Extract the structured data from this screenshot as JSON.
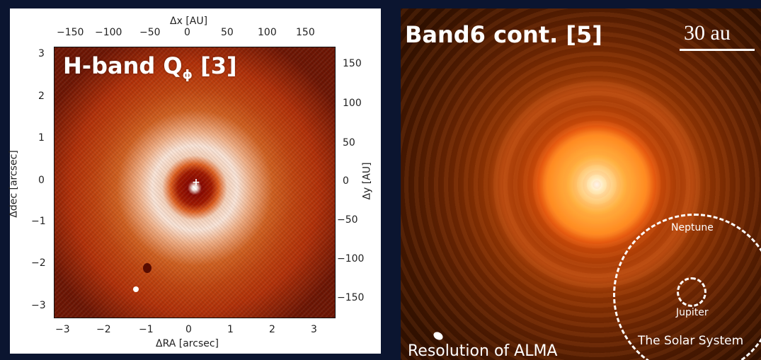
{
  "left_panel": {
    "title_main": "H-band Q",
    "title_sub": "ϕ",
    "title_ref": " [3]",
    "top_axis_title": "Δx [AU]",
    "top_ticks": [
      "−150",
      "−100",
      "−50",
      "0",
      "50",
      "100",
      "150"
    ],
    "bottom_axis_title": "ΔRA [arcsec]",
    "bottom_ticks": [
      "−3",
      "−2",
      "−1",
      "0",
      "1",
      "2",
      "3"
    ],
    "left_axis_title": "Δdec [arcsec]",
    "left_ticks": [
      "3",
      "2",
      "1",
      "0",
      "−1",
      "−2",
      "−3"
    ],
    "right_axis_title": "Δy [AU]",
    "right_ticks": [
      "150",
      "100",
      "50",
      "0",
      "−50",
      "−100",
      "−150"
    ],
    "center_marker": "+"
  },
  "right_panel": {
    "title": "Band6 cont. [5]",
    "scale_label": "30 au",
    "resolution_label": "Resolution of ALMA",
    "neptune_label": "Neptune",
    "jupiter_label": "Jupiter",
    "solar_system_label": "The Solar System"
  }
}
